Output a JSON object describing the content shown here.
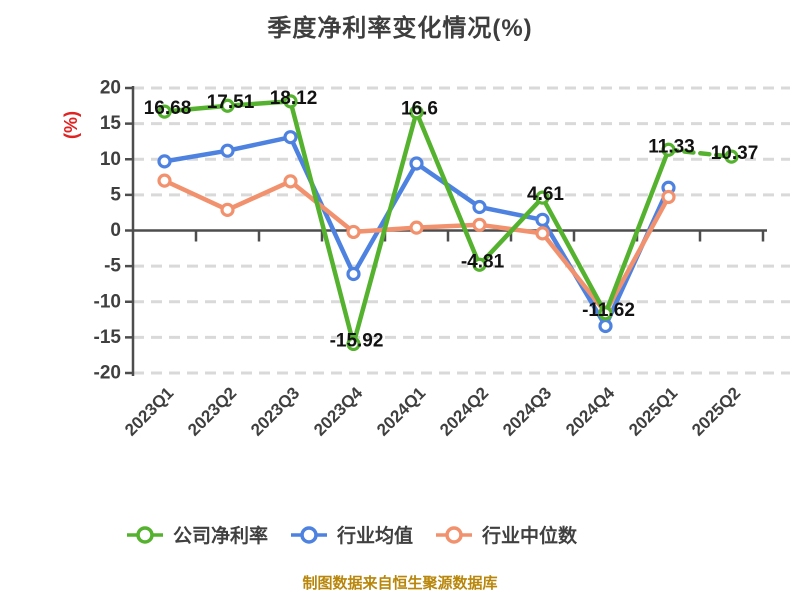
{
  "title": "季度净利率变化情况(%)",
  "footer": "制图数据来自恒生聚源数据库",
  "colors": {
    "company_green": "#55B22E",
    "industry_avg_blue": "#4E82E0",
    "industry_median_orange": "#F2916D",
    "grid": "#D9D9D9",
    "axis": "#4D4D4D",
    "title_text": "#3E3E3E",
    "tick_text": "#3F3F3F",
    "data_label": "#121212",
    "y_unit_red": "#E02222",
    "footer_gold": "#B8860B",
    "dot_fill": "#FFFFFF"
  },
  "chart_data": {
    "type": "line",
    "title": "季度净利率变化情况(%)",
    "ylabel": "(%)",
    "xlabel": "",
    "categories": [
      "2023Q1",
      "2023Q2",
      "2023Q3",
      "2023Q4",
      "2024Q1",
      "2024Q2",
      "2024Q3",
      "2024Q4",
      "2025Q1",
      "2025Q2"
    ],
    "series": [
      {
        "key": "company-net-margin",
        "name": "公司净利率",
        "color": "#55B22E",
        "values": [
          16.68,
          17.51,
          18.12,
          -15.92,
          16.6,
          -4.81,
          4.61,
          -11.62,
          11.33,
          10.37
        ],
        "labeled": true,
        "last_segment_dashed": true
      },
      {
        "key": "industry-average",
        "name": "行业均值",
        "color": "#4E82E0",
        "values": [
          9.7,
          11.2,
          13.1,
          -6.1,
          9.4,
          3.3,
          1.5,
          -13.4,
          6.0,
          null
        ],
        "labeled": false,
        "last_segment_dashed": false
      },
      {
        "key": "industry-median",
        "name": "行业中位数",
        "color": "#F2916D",
        "values": [
          7.0,
          2.9,
          6.9,
          -0.2,
          0.4,
          0.8,
          -0.4,
          -11.5,
          4.7,
          null
        ],
        "labeled": false,
        "last_segment_dashed": false
      }
    ],
    "ylim": [
      -20,
      20
    ],
    "yticks": [
      20,
      15,
      10,
      5,
      0,
      -5,
      -10,
      -15,
      -20
    ],
    "grid": "horizontal-dashed",
    "legend_position": "bottom"
  }
}
